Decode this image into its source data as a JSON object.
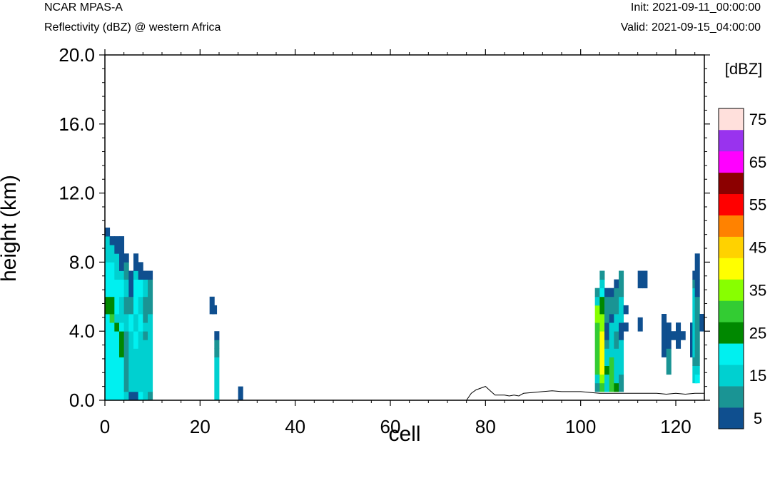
{
  "header": {
    "model": "NCAR MPAS-A",
    "field": "Reflectivity (dBZ) @ western Africa",
    "init": "Init: 2021-09-11_00:00:00",
    "valid": "Valid: 2021-09-15_04:00:00"
  },
  "chart_data": {
    "type": "heatmap",
    "title": "Reflectivity (dBZ) @ western Africa",
    "xlabel": "cell",
    "ylabel": "height (km)",
    "xlim": [
      0,
      126
    ],
    "ylim": [
      0,
      20
    ],
    "x_ticks": [
      0,
      20,
      40,
      60,
      80,
      100,
      120
    ],
    "x_tick_labels": [
      "0",
      "20",
      "40",
      "60",
      "80",
      "100",
      "120"
    ],
    "y_ticks": [
      0,
      4,
      8,
      12,
      16,
      20
    ],
    "y_tick_labels": [
      "0.0",
      "4.0",
      "8.0",
      "12.0",
      "16.0",
      "20.0"
    ],
    "cell_height_km": 0.5,
    "colorbar": {
      "unit_label": "[dBZ]",
      "levels": [
        0,
        10,
        15,
        20,
        25,
        30,
        35,
        40,
        45,
        50,
        55,
        60,
        65,
        70,
        75,
        80
      ],
      "colors": [
        "#0f4f8f",
        "#1a9494",
        "#00d0d0",
        "#00f0f0",
        "#008800",
        "#33cc33",
        "#88ff00",
        "#ffff00",
        "#ffd200",
        "#ff8200",
        "#ff0000",
        "#8c0000",
        "#ff00ff",
        "#9933ee",
        "#ffe0dc"
      ],
      "tick_labels": [
        "5",
        "15",
        "25",
        "35",
        "45",
        "55",
        "65",
        "75"
      ]
    },
    "terrain_km": [
      [
        0,
        0
      ],
      [
        76,
        0
      ],
      [
        77,
        0.4
      ],
      [
        78,
        0.6
      ],
      [
        80,
        0.8
      ],
      [
        81,
        0.55
      ],
      [
        82,
        0.3
      ],
      [
        83,
        0.3
      ],
      [
        84,
        0.3
      ],
      [
        85,
        0.25
      ],
      [
        86,
        0.3
      ],
      [
        87,
        0.25
      ],
      [
        88,
        0.4
      ],
      [
        90,
        0.45
      ],
      [
        92,
        0.5
      ],
      [
        94,
        0.55
      ],
      [
        96,
        0.5
      ],
      [
        98,
        0.5
      ],
      [
        100,
        0.5
      ],
      [
        102,
        0.45
      ],
      [
        104,
        0.4
      ],
      [
        106,
        0.4
      ],
      [
        108,
        0.4
      ],
      [
        110,
        0.4
      ],
      [
        112,
        0.4
      ],
      [
        114,
        0.4
      ],
      [
        116,
        0.4
      ],
      [
        118,
        0.35
      ],
      [
        120,
        0.4
      ],
      [
        122,
        0.35
      ],
      [
        124,
        0.4
      ],
      [
        126,
        0.4
      ]
    ],
    "columns": [
      {
        "x": 0,
        "cells": [
          [
            0,
            5,
            20
          ],
          [
            5,
            6,
            25
          ],
          [
            6,
            8,
            20
          ],
          [
            8,
            9.5,
            15
          ],
          [
            9.5,
            10,
            5
          ]
        ]
      },
      {
        "x": 1,
        "cells": [
          [
            0,
            4.5,
            20
          ],
          [
            4.5,
            5,
            30
          ],
          [
            5,
            6,
            25
          ],
          [
            6,
            8,
            20
          ],
          [
            8,
            9,
            15
          ],
          [
            9,
            9.5,
            5
          ]
        ]
      },
      {
        "x": 2,
        "cells": [
          [
            0,
            4,
            20
          ],
          [
            4,
            4.5,
            25
          ],
          [
            4.5,
            5,
            15
          ],
          [
            5,
            7,
            20
          ],
          [
            7,
            8.5,
            15
          ],
          [
            8.5,
            9.5,
            5
          ]
        ]
      },
      {
        "x": 3,
        "cells": [
          [
            0,
            2.5,
            20
          ],
          [
            2.5,
            4,
            25
          ],
          [
            4,
            4.5,
            20
          ],
          [
            4.5,
            6,
            15
          ],
          [
            6,
            7,
            20
          ],
          [
            7,
            7.5,
            15
          ],
          [
            7.5,
            9.5,
            5
          ]
        ]
      },
      {
        "x": 4,
        "cells": [
          [
            0,
            0.5,
            15
          ],
          [
            0.5,
            4,
            10
          ],
          [
            4,
            5.5,
            15
          ],
          [
            5,
            6,
            10
          ],
          [
            6,
            7,
            15
          ],
          [
            7,
            8,
            10
          ],
          [
            8,
            8.5,
            5
          ]
        ]
      },
      {
        "x": 5,
        "cells": [
          [
            0,
            0.5,
            5
          ],
          [
            0.5,
            4,
            15
          ],
          [
            4,
            5,
            20
          ],
          [
            5,
            6,
            10
          ],
          [
            6,
            7.5,
            5
          ]
        ]
      },
      {
        "x": 6,
        "cells": [
          [
            0,
            0.5,
            5
          ],
          [
            0.5,
            3,
            15
          ],
          [
            3,
            4,
            20
          ],
          [
            4,
            5,
            15
          ],
          [
            5,
            7,
            20
          ],
          [
            7,
            7.5,
            15
          ],
          [
            7.5,
            8.5,
            5
          ]
        ]
      },
      {
        "x": 7,
        "cells": [
          [
            0,
            0.5,
            20
          ],
          [
            0.5,
            4,
            15
          ],
          [
            4,
            5,
            20
          ],
          [
            5,
            6,
            15
          ],
          [
            6,
            7,
            20
          ],
          [
            7,
            8,
            5
          ]
        ]
      },
      {
        "x": 8,
        "cells": [
          [
            0,
            3.5,
            15
          ],
          [
            3.5,
            4,
            10
          ],
          [
            4,
            4.5,
            15
          ],
          [
            4.5,
            6,
            10
          ],
          [
            6,
            7,
            15
          ],
          [
            7,
            7.5,
            5
          ]
        ]
      },
      {
        "x": 9,
        "cells": [
          [
            0,
            0.5,
            10
          ],
          [
            0.5,
            4,
            15
          ],
          [
            4,
            5,
            15
          ],
          [
            5,
            7,
            10
          ],
          [
            7,
            7.5,
            5
          ]
        ]
      },
      {
        "x": 22,
        "cells": [
          [
            5,
            6,
            5
          ]
        ]
      },
      {
        "x": 22.5,
        "cells": [
          [
            5,
            5.5,
            5
          ]
        ]
      },
      {
        "x": 23,
        "cells": [
          [
            0,
            2.5,
            15
          ],
          [
            2.5,
            3,
            10
          ],
          [
            3,
            3.5,
            10
          ],
          [
            3.5,
            4,
            5
          ]
        ]
      },
      {
        "x": 28,
        "cells": [
          [
            0,
            0.8,
            5
          ]
        ]
      },
      {
        "x": 103,
        "cells": [
          [
            0.5,
            1,
            10
          ],
          [
            1,
            1.5,
            15
          ],
          [
            1.5,
            4.5,
            30
          ],
          [
            4.5,
            5.5,
            35
          ],
          [
            5.5,
            6,
            15
          ],
          [
            6,
            6.5,
            10
          ]
        ]
      },
      {
        "x": 104,
        "cells": [
          [
            0.5,
            1,
            30
          ],
          [
            1,
            1.5,
            35
          ],
          [
            1.5,
            4,
            40
          ],
          [
            4,
            5,
            35
          ],
          [
            5,
            6,
            25
          ],
          [
            6,
            6.5,
            20
          ],
          [
            6.5,
            7,
            15
          ],
          [
            7,
            7.5,
            10
          ]
        ]
      },
      {
        "x": 105,
        "cells": [
          [
            0.5,
            1.5,
            15
          ],
          [
            1.5,
            2,
            25
          ],
          [
            2,
            3,
            15
          ],
          [
            3,
            3.5,
            10
          ],
          [
            3.5,
            4.5,
            5
          ],
          [
            4.5,
            6,
            10
          ],
          [
            6,
            6.5,
            5
          ]
        ]
      },
      {
        "x": 106,
        "cells": [
          [
            0.5,
            2.5,
            30
          ],
          [
            2.5,
            3.5,
            15
          ],
          [
            3.5,
            4.5,
            15
          ],
          [
            4.5,
            5,
            5
          ],
          [
            5,
            6,
            10
          ],
          [
            6,
            6.5,
            5
          ]
        ]
      },
      {
        "x": 107,
        "cells": [
          [
            0.5,
            1,
            25
          ],
          [
            1,
            3,
            15
          ],
          [
            3,
            4,
            10
          ],
          [
            4,
            5,
            15
          ],
          [
            5,
            6,
            10
          ],
          [
            6,
            6.5,
            10
          ],
          [
            6.5,
            7,
            5
          ]
        ]
      },
      {
        "x": 108,
        "cells": [
          [
            0.5,
            1.5,
            10
          ],
          [
            1.5,
            3.5,
            15
          ],
          [
            3.5,
            4.5,
            5
          ],
          [
            4.5,
            6,
            15
          ],
          [
            6,
            6.5,
            10
          ],
          [
            6.5,
            7.5,
            10
          ]
        ]
      },
      {
        "x": 109,
        "cells": [
          [
            4,
            4.5,
            5
          ],
          [
            5,
            5.5,
            5
          ]
        ]
      },
      {
        "x": 112,
        "cells": [
          [
            4,
            4.8,
            5
          ],
          [
            6.5,
            7.5,
            5
          ]
        ]
      },
      {
        "x": 113,
        "cells": [
          [
            6.5,
            7.5,
            5
          ]
        ]
      },
      {
        "x": 117,
        "cells": [
          [
            2.5,
            5,
            5
          ]
        ]
      },
      {
        "x": 118,
        "cells": [
          [
            1.5,
            3,
            10
          ],
          [
            3,
            4.5,
            5
          ]
        ]
      },
      {
        "x": 119,
        "cells": [
          [
            3.5,
            4,
            5
          ]
        ]
      },
      {
        "x": 120,
        "cells": [
          [
            3,
            4.5,
            5
          ]
        ]
      },
      {
        "x": 121,
        "cells": [
          [
            3.5,
            4,
            5
          ]
        ]
      },
      {
        "x": 123,
        "cells": [
          [
            2.5,
            4.5,
            5
          ]
        ]
      },
      {
        "x": 123.5,
        "cells": [
          [
            1,
            2,
            15
          ],
          [
            2,
            2.5,
            10
          ],
          [
            2.5,
            6.5,
            15
          ],
          [
            6.5,
            7,
            10
          ],
          [
            7,
            7.5,
            5
          ]
        ]
      },
      {
        "x": 124,
        "cells": [
          [
            1,
            1.5,
            20
          ],
          [
            1.5,
            2,
            15
          ],
          [
            2,
            6,
            10
          ],
          [
            6,
            7,
            5
          ],
          [
            7,
            8.5,
            5
          ]
        ]
      },
      {
        "x": 125,
        "cells": [
          [
            4,
            5,
            5
          ]
        ]
      }
    ]
  }
}
